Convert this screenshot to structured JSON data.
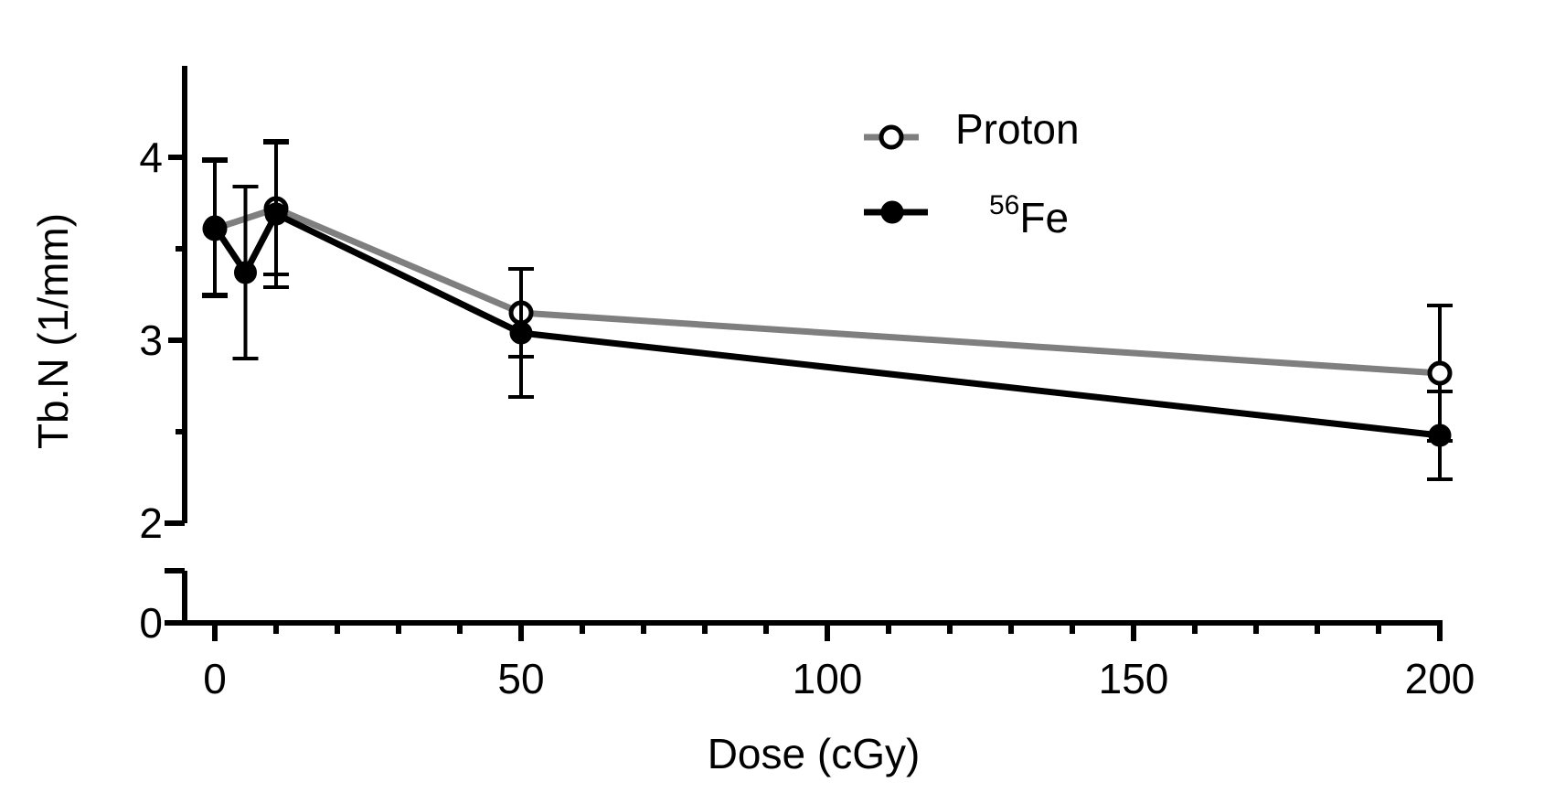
{
  "chart_data": {
    "type": "line",
    "xlabel": "Dose (cGy)",
    "ylabel": "Tb.N (1/mm)",
    "xlim": [
      -5,
      200
    ],
    "ylim_upper_segment": [
      2,
      4.5
    ],
    "ylim_lower_segment": [
      0,
      0.3
    ],
    "y_axis_break": true,
    "x_ticks": [
      0,
      50,
      100,
      150,
      200
    ],
    "y_ticks": [
      0,
      2,
      3,
      4
    ],
    "y_tick_labels": [
      "0",
      "2",
      "3",
      "4"
    ],
    "legend_position": "top-center",
    "series": [
      {
        "name": "Proton",
        "color": "#7f7f7f",
        "marker": "open-circle",
        "x": [
          0,
          10,
          50,
          200
        ],
        "y": [
          3.61,
          3.72,
          3.15,
          2.82
        ],
        "error": [
          0.37,
          0.36,
          0.24,
          0.37
        ]
      },
      {
        "name_base": "Fe",
        "name_superscript": "56",
        "color": "#000000",
        "marker": "filled-circle",
        "x": [
          0,
          5,
          10,
          50,
          200
        ],
        "y": [
          3.62,
          3.37,
          3.69,
          3.04,
          2.48
        ],
        "error": [
          0.37,
          0.47,
          0.4,
          0.35,
          0.24
        ]
      }
    ]
  }
}
